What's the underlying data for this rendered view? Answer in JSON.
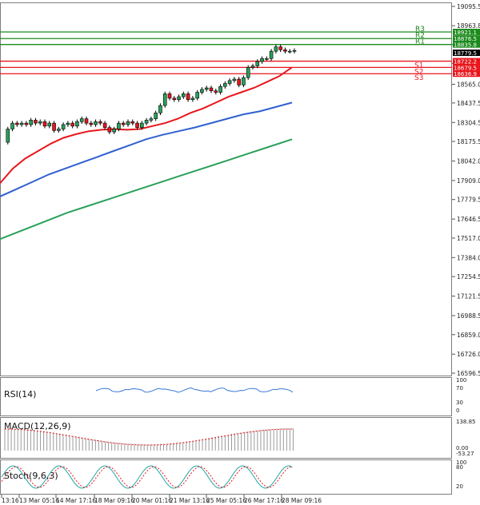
{
  "chart_data": {
    "type": "candlestick",
    "price_axis": {
      "ticks": [
        "19095.5",
        "18963.8",
        "18835.8",
        "18707.0",
        "18565.0",
        "18437.5",
        "18304.5",
        "18175.5",
        "18042.0",
        "17909.0",
        "17779.5",
        "17646.5",
        "17517.0",
        "17384.0",
        "17254.5",
        "17121.5",
        "16988.5",
        "16859.0",
        "16726.0",
        "16596.5"
      ],
      "range": [
        16596.5,
        19095.5
      ],
      "current_price": "18779.5"
    },
    "levels": {
      "resistance": [
        {
          "name": "R3",
          "value": "18921.1"
        },
        {
          "name": "R2",
          "value": "18876.5"
        },
        {
          "name": "R1",
          "value": "18835.8"
        }
      ],
      "support": [
        {
          "name": "S1",
          "value": "18722.2"
        },
        {
          "name": "S2",
          "value": "18679.5"
        },
        {
          "name": "S3",
          "value": "18636.9"
        }
      ]
    },
    "time_axis": [
      "13:16",
      "13 Mar 05:16",
      "14 Mar 17:16",
      "18 Mar 09:16",
      "20 Mar 01:16",
      "21 Mar 13:16",
      "25 Mar 05:16",
      "26 Mar 17:16",
      "28 Mar 09:16"
    ],
    "close_series": [
      18170,
      18260,
      18300,
      18290,
      18300,
      18290,
      18320,
      18300,
      18310,
      18280,
      18300,
      18250,
      18260,
      18290,
      18300,
      18280,
      18310,
      18330,
      18300,
      18290,
      18310,
      18300,
      18270,
      18240,
      18260,
      18300,
      18290,
      18310,
      18300,
      18270,
      18300,
      18320,
      18330,
      18370,
      18420,
      18500,
      18470,
      18460,
      18480,
      18500,
      18460,
      18470,
      18510,
      18530,
      18540,
      18520,
      18510,
      18550,
      18570,
      18590,
      18600,
      18560,
      18610,
      18680,
      18690,
      18720,
      18740,
      18740,
      18790,
      18820,
      18800,
      18790,
      18790,
      18795
    ],
    "moving_averages": [
      {
        "color": "#e8161c",
        "values": [
          17890,
          17990,
          18060,
          18110,
          18160,
          18200,
          18225,
          18245,
          18255,
          18260,
          18255,
          18260,
          18280,
          18300,
          18330,
          18370,
          18400,
          18440,
          18480,
          18510,
          18540,
          18580,
          18620,
          18680
        ]
      },
      {
        "color": "#3060d0",
        "values": [
          17800,
          17850,
          17900,
          17950,
          17990,
          18030,
          18070,
          18110,
          18150,
          18190,
          18220,
          18245,
          18270,
          18300,
          18330,
          18360,
          18380,
          18410,
          18440
        ]
      },
      {
        "color": "#2aa05a",
        "values": [
          17510,
          17570,
          17630,
          17690,
          17740,
          17790,
          17840,
          17890,
          17940,
          17990,
          18040,
          18090,
          18140,
          18190
        ]
      }
    ],
    "indicators": [
      {
        "name": "RSI(14)",
        "scale": [
          "100",
          "70",
          "30",
          "0"
        ],
        "color": "#3a78d8"
      },
      {
        "name": "MACD(12,26,9)",
        "scale": [
          "138.85",
          "0.00",
          "-53.27"
        ]
      },
      {
        "name": "Stoch(9,6,3)",
        "scale": [
          "100",
          "80",
          "20"
        ]
      }
    ]
  }
}
